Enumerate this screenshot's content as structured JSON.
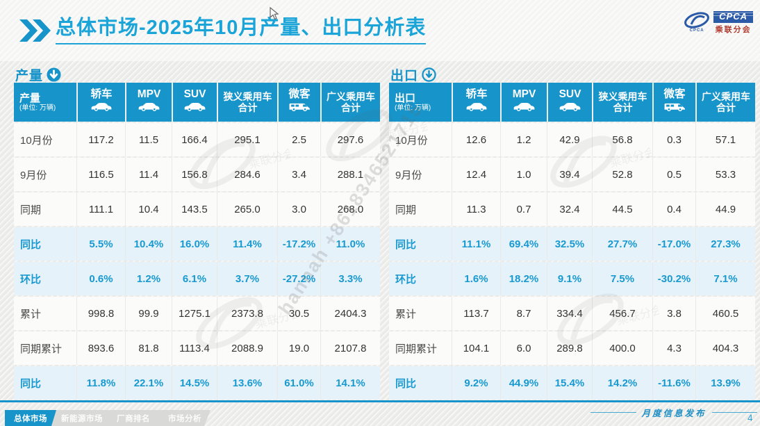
{
  "header": {
    "title": "总体市场-2025年10月产量、出口分析表"
  },
  "logo": {
    "name": "CPCA",
    "subtitle": "乘联分会"
  },
  "colors": {
    "accent": "#1794c9",
    "title": "#1ba4d8",
    "highlight_bg": "#e6f2fa",
    "highlight_text": "#1899cf",
    "logo_blue": "#2b5aa7",
    "logo_red": "#b03a2e"
  },
  "tables": [
    {
      "id": "production",
      "section_label": "产量",
      "corner_label": "产量",
      "unit_label": "(单位: 万辆)",
      "arrow_style": "filled",
      "columns": [
        {
          "label": "轿车",
          "icon": "sedan-icon"
        },
        {
          "label": "MPV",
          "icon": "mpv-icon"
        },
        {
          "label": "SUV",
          "icon": "suv-icon"
        },
        {
          "label": "狭义乘用车",
          "label2": "合计"
        },
        {
          "label": "微客",
          "icon": "minivan-icon"
        },
        {
          "label": "广义乘用车",
          "label2": "合计"
        }
      ],
      "rows": [
        {
          "label": "10月份",
          "highlight": false,
          "values": [
            "117.2",
            "11.5",
            "166.4",
            "295.1",
            "2.5",
            "297.6"
          ]
        },
        {
          "label": "9月份",
          "highlight": false,
          "values": [
            "116.5",
            "11.4",
            "156.8",
            "284.6",
            "3.4",
            "288.1"
          ]
        },
        {
          "label": "同期",
          "highlight": false,
          "values": [
            "111.1",
            "10.4",
            "143.5",
            "265.0",
            "3.0",
            "268.0"
          ]
        },
        {
          "label": "同比",
          "highlight": true,
          "values": [
            "5.5%",
            "10.4%",
            "16.0%",
            "11.4%",
            "-17.2%",
            "11.0%"
          ]
        },
        {
          "label": "环比",
          "highlight": true,
          "values": [
            "0.6%",
            "1.2%",
            "6.1%",
            "3.7%",
            "-27.2%",
            "3.3%"
          ]
        },
        {
          "label": "累计",
          "highlight": false,
          "values": [
            "998.8",
            "99.9",
            "1275.1",
            "2373.8",
            "30.5",
            "2404.3"
          ]
        },
        {
          "label": "同期累计",
          "highlight": false,
          "values": [
            "893.6",
            "81.8",
            "1113.4",
            "2088.9",
            "19.0",
            "2107.8"
          ]
        },
        {
          "label": "同比",
          "highlight": true,
          "values": [
            "11.8%",
            "22.1%",
            "14.5%",
            "13.6%",
            "61.0%",
            "14.1%"
          ]
        }
      ]
    },
    {
      "id": "export",
      "section_label": "出口",
      "corner_label": "出口",
      "unit_label": "(单位: 万辆)",
      "arrow_style": "outlined",
      "columns": [
        {
          "label": "轿车",
          "icon": "sedan-icon"
        },
        {
          "label": "MPV",
          "icon": "mpv-icon"
        },
        {
          "label": "SUV",
          "icon": "suv-icon"
        },
        {
          "label": "狭义乘用车",
          "label2": "合计"
        },
        {
          "label": "微客",
          "icon": "minivan-icon"
        },
        {
          "label": "广义乘用车",
          "label2": "合计"
        }
      ],
      "rows": [
        {
          "label": "10月份",
          "highlight": false,
          "values": [
            "12.6",
            "1.2",
            "42.9",
            "56.8",
            "0.3",
            "57.1"
          ]
        },
        {
          "label": "9月份",
          "highlight": false,
          "values": [
            "12.4",
            "1.0",
            "39.4",
            "52.8",
            "0.5",
            "53.3"
          ]
        },
        {
          "label": "同期",
          "highlight": false,
          "values": [
            "11.3",
            "0.7",
            "32.4",
            "44.5",
            "0.4",
            "44.9"
          ]
        },
        {
          "label": "同比",
          "highlight": true,
          "values": [
            "11.1%",
            "69.4%",
            "32.5%",
            "27.7%",
            "-17.0%",
            "27.3%"
          ]
        },
        {
          "label": "环比",
          "highlight": true,
          "values": [
            "1.6%",
            "18.2%",
            "9.1%",
            "7.5%",
            "-30.2%",
            "7.1%"
          ]
        },
        {
          "label": "累计",
          "highlight": false,
          "values": [
            "113.7",
            "8.7",
            "334.4",
            "456.7",
            "3.8",
            "460.5"
          ]
        },
        {
          "label": "同期累计",
          "highlight": false,
          "values": [
            "104.1",
            "6.0",
            "289.8",
            "400.0",
            "4.3",
            "404.3"
          ]
        },
        {
          "label": "同比",
          "highlight": true,
          "values": [
            "9.2%",
            "44.9%",
            "15.4%",
            "14.2%",
            "-11.6%",
            "13.9%"
          ]
        }
      ]
    }
  ],
  "bottom_tabs": [
    {
      "label": "总体市场",
      "active": true
    },
    {
      "label": "新能源市场",
      "active": false
    },
    {
      "label": "厂商排名",
      "active": false
    },
    {
      "label": "市场分析",
      "active": false
    }
  ],
  "footer": {
    "label": "月度信息发布",
    "page_number": "4"
  },
  "watermark": {
    "text": "hannah +8618346521715",
    "logo_text": "乘联分会"
  }
}
